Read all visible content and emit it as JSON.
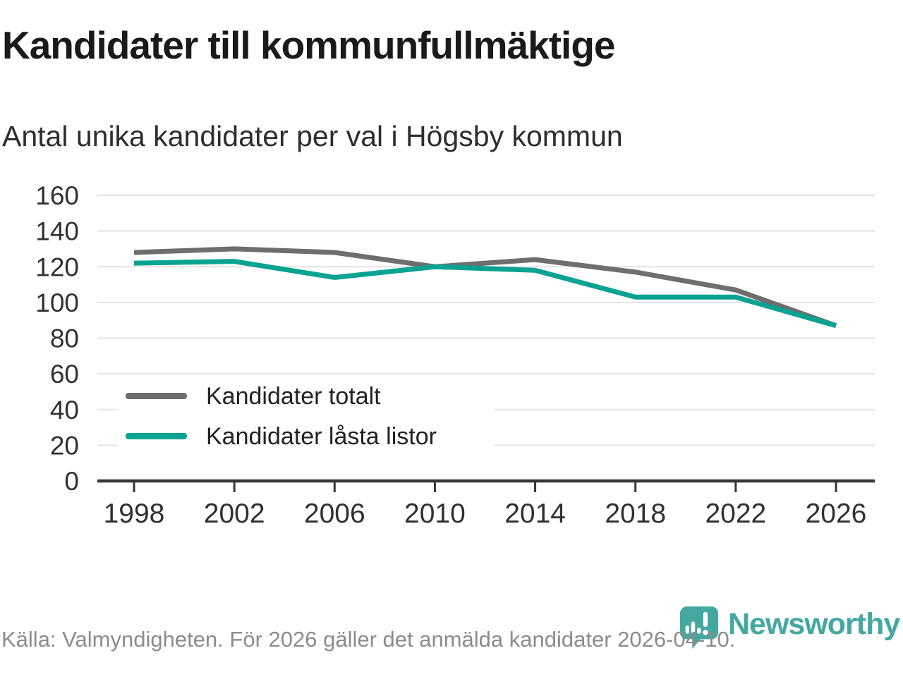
{
  "header": {
    "title": "Kandidater till kommunfullmäktige",
    "subtitle": "Antal unika kandidater per val i Högsby kommun"
  },
  "chart_data": {
    "type": "line",
    "x": [
      1998,
      2002,
      2006,
      2010,
      2014,
      2018,
      2022,
      2026
    ],
    "series": [
      {
        "name": "Kandidater totalt",
        "color": "#6e6e6e",
        "values": [
          128,
          130,
          128,
          120,
          124,
          117,
          107,
          87
        ]
      },
      {
        "name": "Kandidater låsta listor",
        "color": "#0aa392",
        "values": [
          122,
          123,
          114,
          120,
          118,
          103,
          103,
          87
        ]
      }
    ],
    "ylim": [
      0,
      160
    ],
    "yticks": [
      0,
      20,
      40,
      60,
      80,
      100,
      120,
      140,
      160
    ],
    "grid": true,
    "legend_position": "lower-left"
  },
  "footer": {
    "source": "Källa: Valmyndigheten. För 2026 gäller det anmälda kandidater 2026-04-10.",
    "brand": "Newsworthy"
  },
  "colors": {
    "brand": "#44a8a1",
    "grid": "#e3e3e3",
    "axis": "#363636",
    "tick_text": "#303030",
    "title_text": "#1a1a1a",
    "subtitle_text": "#2d2d2d",
    "legend_text": "#222222",
    "source_text": "#8c8c8c",
    "background": "#ffffff"
  }
}
